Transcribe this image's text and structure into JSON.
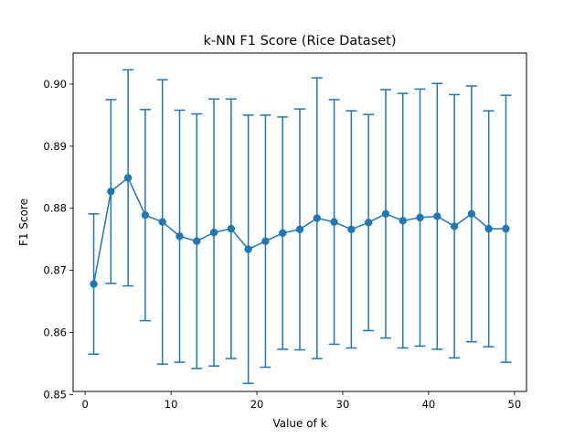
{
  "chart_data": {
    "type": "line",
    "title": "k-NN F1 Score (Rice Dataset)",
    "xlabel": "Value of k",
    "ylabel": "F1 Score",
    "xlim": [
      -1.4,
      51.4
    ],
    "ylim": [
      0.8505,
      0.905
    ],
    "xticks": [
      0,
      10,
      20,
      30,
      40,
      50
    ],
    "yticks": [
      0.85,
      0.86,
      0.87,
      0.88,
      0.89,
      0.9
    ],
    "ytick_labels": [
      "0.85",
      "0.86",
      "0.87",
      "0.88",
      "0.89",
      "0.90"
    ],
    "grid": false,
    "series": [
      {
        "color": "#1f77b4",
        "marker": "circle",
        "error_bars": true,
        "x": [
          1,
          3,
          5,
          7,
          9,
          11,
          13,
          15,
          17,
          19,
          21,
          23,
          25,
          27,
          29,
          31,
          33,
          35,
          37,
          39,
          41,
          43,
          45,
          47,
          49
        ],
        "y": [
          0.8678,
          0.8827,
          0.8849,
          0.8789,
          0.8778,
          0.8755,
          0.8747,
          0.8761,
          0.8767,
          0.8734,
          0.8747,
          0.876,
          0.8766,
          0.8784,
          0.8778,
          0.8766,
          0.8777,
          0.8791,
          0.878,
          0.8785,
          0.8787,
          0.8771,
          0.8791,
          0.8767,
          0.8767
        ],
        "err": [
          0.0113,
          0.0148,
          0.0174,
          0.017,
          0.0229,
          0.0203,
          0.0205,
          0.0215,
          0.0209,
          0.0216,
          0.0203,
          0.0187,
          0.0194,
          0.0226,
          0.0197,
          0.0191,
          0.0174,
          0.02,
          0.0205,
          0.0207,
          0.0214,
          0.0212,
          0.0206,
          0.019,
          0.0215
        ]
      }
    ]
  }
}
